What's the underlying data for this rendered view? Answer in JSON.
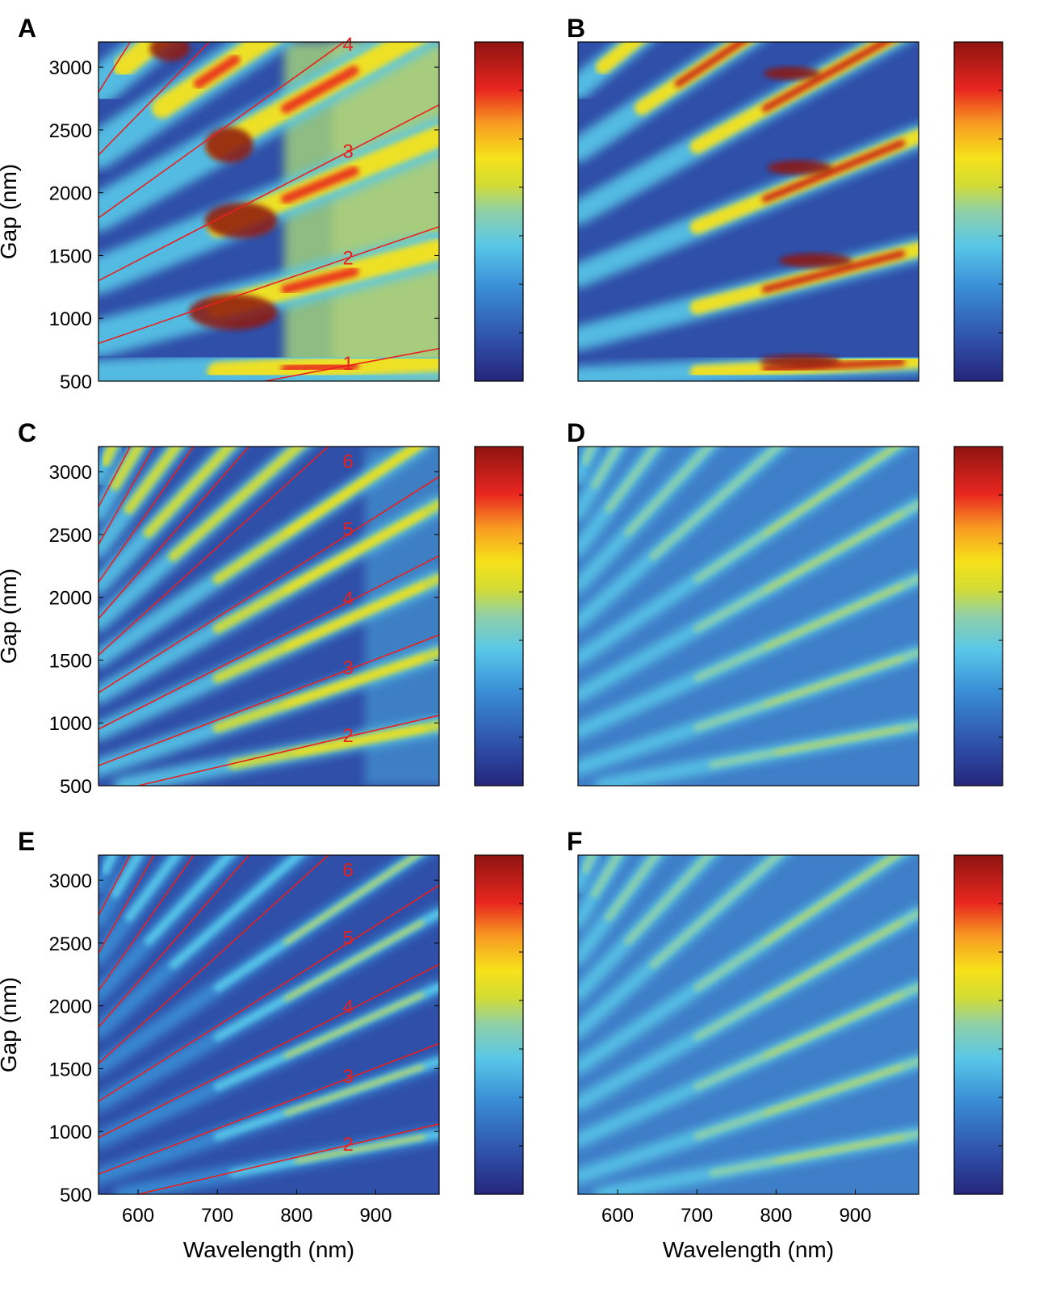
{
  "chart_data": [
    {
      "panel": "A",
      "type": "heatmap",
      "has_orders": true,
      "xlabel": "",
      "ylabel": "Gap (nm)",
      "xlim": [
        550,
        980
      ],
      "ylim": [
        500,
        3200
      ],
      "xticks": [],
      "yticks": [
        500,
        1000,
        1500,
        2000,
        2500,
        3000
      ],
      "order_lines": [
        {
          "label": "1",
          "points": [
            [
              760,
              500
            ],
            [
              980,
              760
            ]
          ]
        },
        {
          "label": "2",
          "points": [
            [
              550,
              800
            ],
            [
              980,
              1730
            ]
          ]
        },
        {
          "label": "3",
          "points": [
            [
              550,
              1300
            ],
            [
              980,
              2700
            ]
          ]
        },
        {
          "label": "4",
          "points": [
            [
              550,
              1800
            ],
            [
              860,
              3200
            ]
          ]
        },
        {
          "label": "",
          "points": [
            [
              550,
              2300
            ],
            [
              690,
              3200
            ]
          ]
        },
        {
          "label": "",
          "points": [
            [
              550,
              2800
            ],
            [
              590,
              3200
            ]
          ]
        }
      ],
      "order_labels": [
        {
          "text": "1",
          "x": 865,
          "y": 640
        },
        {
          "text": "2",
          "x": 865,
          "y": 1480
        },
        {
          "text": "3",
          "x": 865,
          "y": 2330
        },
        {
          "text": "4",
          "x": 865,
          "y": 3180
        }
      ]
    },
    {
      "panel": "B",
      "type": "heatmap",
      "has_orders": false,
      "xlabel": "",
      "ylabel": "",
      "xlim": [
        550,
        980
      ],
      "ylim": [
        500,
        3200
      ],
      "xticks": [],
      "yticks": []
    },
    {
      "panel": "C",
      "type": "heatmap",
      "has_orders": true,
      "xlabel": "",
      "ylabel": "Gap (nm)",
      "xlim": [
        550,
        980
      ],
      "ylim": [
        500,
        3200
      ],
      "xticks": [],
      "yticks": [
        500,
        1000,
        1500,
        2000,
        2500,
        3000
      ],
      "order_lines": [
        {
          "label": "2",
          "points": [
            [
              600,
              500
            ],
            [
              980,
              1060
            ]
          ]
        },
        {
          "label": "3",
          "points": [
            [
              550,
              660
            ],
            [
              980,
              1700
            ]
          ]
        },
        {
          "label": "4",
          "points": [
            [
              550,
              950
            ],
            [
              980,
              2330
            ]
          ]
        },
        {
          "label": "5",
          "points": [
            [
              550,
              1240
            ],
            [
              980,
              2960
            ]
          ]
        },
        {
          "label": "6",
          "points": [
            [
              550,
              1540
            ],
            [
              840,
              3200
            ]
          ]
        },
        {
          "label": "",
          "points": [
            [
              550,
              1830
            ],
            [
              740,
              3200
            ]
          ]
        },
        {
          "label": "",
          "points": [
            [
              550,
              2120
            ],
            [
              670,
              3200
            ]
          ]
        },
        {
          "label": "",
          "points": [
            [
              550,
              2420
            ],
            [
              620,
              3200
            ]
          ]
        },
        {
          "label": "",
          "points": [
            [
              550,
              2720
            ],
            [
              590,
              3200
            ]
          ]
        }
      ],
      "order_labels": [
        {
          "text": "2",
          "x": 865,
          "y": 900
        },
        {
          "text": "3",
          "x": 865,
          "y": 1440
        },
        {
          "text": "4",
          "x": 865,
          "y": 1990
        },
        {
          "text": "5",
          "x": 865,
          "y": 2540
        },
        {
          "text": "6",
          "x": 865,
          "y": 3080
        }
      ]
    },
    {
      "panel": "D",
      "type": "heatmap",
      "has_orders": false,
      "xlabel": "",
      "ylabel": "",
      "xlim": [
        550,
        980
      ],
      "ylim": [
        500,
        3200
      ],
      "xticks": [],
      "yticks": []
    },
    {
      "panel": "E",
      "type": "heatmap",
      "has_orders": true,
      "xlabel": "Wavelength (nm)",
      "ylabel": "Gap (nm)",
      "xlim": [
        550,
        980
      ],
      "ylim": [
        500,
        3200
      ],
      "xticks": [
        600,
        700,
        800,
        900
      ],
      "yticks": [
        500,
        1000,
        1500,
        2000,
        2500,
        3000
      ],
      "order_lines": [
        {
          "label": "2",
          "points": [
            [
              600,
              500
            ],
            [
              980,
              1060
            ]
          ]
        },
        {
          "label": "3",
          "points": [
            [
              550,
              660
            ],
            [
              980,
              1700
            ]
          ]
        },
        {
          "label": "4",
          "points": [
            [
              550,
              950
            ],
            [
              980,
              2330
            ]
          ]
        },
        {
          "label": "5",
          "points": [
            [
              550,
              1240
            ],
            [
              980,
              2960
            ]
          ]
        },
        {
          "label": "6",
          "points": [
            [
              550,
              1540
            ],
            [
              840,
              3200
            ]
          ]
        },
        {
          "label": "",
          "points": [
            [
              550,
              1830
            ],
            [
              740,
              3200
            ]
          ]
        },
        {
          "label": "",
          "points": [
            [
              550,
              2120
            ],
            [
              670,
              3200
            ]
          ]
        },
        {
          "label": "",
          "points": [
            [
              550,
              2420
            ],
            [
              620,
              3200
            ]
          ]
        },
        {
          "label": "",
          "points": [
            [
              550,
              2720
            ],
            [
              590,
              3200
            ]
          ]
        }
      ],
      "order_labels": [
        {
          "text": "2",
          "x": 865,
          "y": 900
        },
        {
          "text": "3",
          "x": 865,
          "y": 1440
        },
        {
          "text": "4",
          "x": 865,
          "y": 1990
        },
        {
          "text": "5",
          "x": 865,
          "y": 2540
        },
        {
          "text": "6",
          "x": 865,
          "y": 3080
        }
      ]
    },
    {
      "panel": "F",
      "type": "heatmap",
      "has_orders": false,
      "xlabel": "Wavelength (nm)",
      "ylabel": "",
      "xlim": [
        550,
        980
      ],
      "ylim": [
        500,
        3200
      ],
      "xticks": [
        600,
        700,
        800,
        900
      ],
      "yticks": []
    }
  ],
  "colormap": [
    "#25267a",
    "#2f4fa8",
    "#3a8fd6",
    "#59c7e8",
    "#8fd0a8",
    "#d3dc34",
    "#f6e21a",
    "#f89b22",
    "#e9261f",
    "#8f1411"
  ],
  "colors": {
    "order_line": "#e8201e",
    "axis": "#000000"
  }
}
